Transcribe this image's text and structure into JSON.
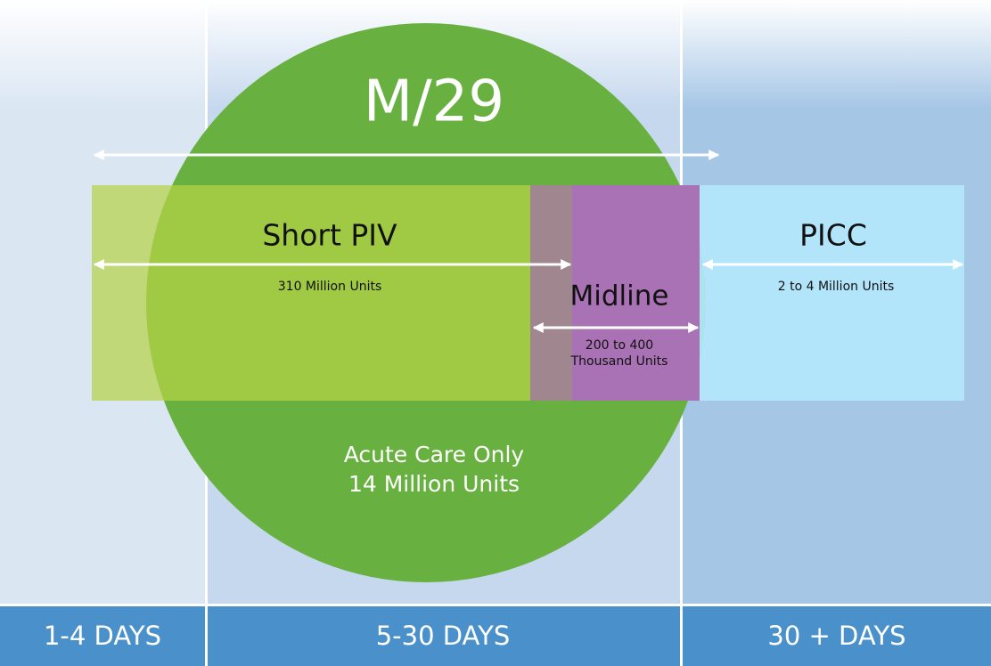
{
  "title": "M/29",
  "segments": [
    {
      "label": "Short PIV",
      "units": [
        "310 Million Units"
      ]
    },
    {
      "label": "Midline",
      "units": [
        "200 to 400",
        "Thousand Units"
      ]
    },
    {
      "label": "PICC",
      "units": [
        "2 to 4 Million Units"
      ]
    }
  ],
  "acute": [
    "Acute Care Only",
    "14 Million Units"
  ],
  "durations": [
    "1-4 DAYS",
    "5-30 DAYS",
    "30 + DAYS"
  ]
}
